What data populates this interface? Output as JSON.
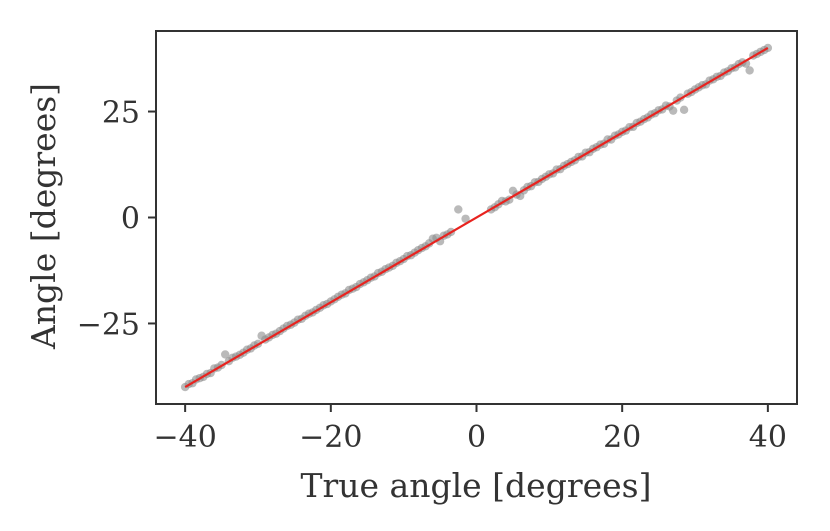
{
  "chart_data": {
    "type": "scatter",
    "title": "",
    "xlabel": "True angle [degrees]",
    "ylabel": "Angle [degrees]",
    "xlim": [
      -44,
      44
    ],
    "ylim": [
      -44,
      44
    ],
    "x_ticks": [
      -40,
      -20,
      0,
      20,
      40
    ],
    "x_tick_labels": [
      "−40",
      "−20",
      "0",
      "20",
      "40"
    ],
    "y_ticks": [
      -25,
      0,
      25
    ],
    "y_tick_labels": [
      "−25",
      "0",
      "25"
    ],
    "grid": false,
    "colors": {
      "points": "#8c8c8c",
      "fit_line": "#e8231f",
      "axes": "#333333"
    },
    "series": [
      {
        "kind": "scatter",
        "points": [
          [
            -40,
            -40
          ],
          [
            -39.5,
            -39.3
          ],
          [
            -39,
            -39.1
          ],
          [
            -38.5,
            -38.2
          ],
          [
            -38,
            -37.9
          ],
          [
            -37.5,
            -37.6
          ],
          [
            -37,
            -36.9
          ],
          [
            -36.5,
            -36.7
          ],
          [
            -36,
            -35.6
          ],
          [
            -35.5,
            -35.4
          ],
          [
            -35,
            -34.8
          ],
          [
            -34.5,
            -32.3
          ],
          [
            -34,
            -33.9
          ],
          [
            -33.5,
            -33.1
          ],
          [
            -33,
            -32.8
          ],
          [
            -32.5,
            -32.4
          ],
          [
            -32,
            -31.9
          ],
          [
            -31.5,
            -31.2
          ],
          [
            -31,
            -30.9
          ],
          [
            -30.5,
            -30.2
          ],
          [
            -30,
            -29.8
          ],
          [
            -29.5,
            -27.9
          ],
          [
            -29,
            -28.8
          ],
          [
            -28.5,
            -28.3
          ],
          [
            -28,
            -27.7
          ],
          [
            -27.5,
            -27.4
          ],
          [
            -27,
            -26.8
          ],
          [
            -26.5,
            -26.2
          ],
          [
            -26,
            -25.6
          ],
          [
            -25.5,
            -25.3
          ],
          [
            -25,
            -24.8
          ],
          [
            -24.5,
            -24.1
          ],
          [
            -24,
            -23.9
          ],
          [
            -23.5,
            -23.2
          ],
          [
            -23,
            -22.7
          ],
          [
            -22.5,
            -22.4
          ],
          [
            -22,
            -21.8
          ],
          [
            -21.5,
            -21.3
          ],
          [
            -21,
            -20.7
          ],
          [
            -20.5,
            -20.4
          ],
          [
            -20,
            -19.8
          ],
          [
            -19.5,
            -19.3
          ],
          [
            -19,
            -18.7
          ],
          [
            -18.5,
            -18.2
          ],
          [
            -18,
            -17.9
          ],
          [
            -17.5,
            -17.1
          ],
          [
            -17,
            -16.8
          ],
          [
            -16.5,
            -16.4
          ],
          [
            -16,
            -15.7
          ],
          [
            -15.5,
            -15.3
          ],
          [
            -15,
            -14.8
          ],
          [
            -14.5,
            -14.2
          ],
          [
            -14,
            -13.9
          ],
          [
            -13.5,
            -13.1
          ],
          [
            -13,
            -12.8
          ],
          [
            -12.5,
            -12.2
          ],
          [
            -12,
            -11.8
          ],
          [
            -11.5,
            -11.4
          ],
          [
            -11,
            -10.7
          ],
          [
            -10.5,
            -10.3
          ],
          [
            -10,
            -9.8
          ],
          [
            -9.5,
            -9.1
          ],
          [
            -9,
            -8.9
          ],
          [
            -8.5,
            -8.3
          ],
          [
            -8,
            -7.7
          ],
          [
            -7.5,
            -7.2
          ],
          [
            -7,
            -6.8
          ],
          [
            -6.5,
            -6.1
          ],
          [
            -6,
            -5.0
          ],
          [
            -5.5,
            -4.8
          ],
          [
            -5,
            -5.6
          ],
          [
            -4.5,
            -4.3
          ],
          [
            -4,
            -4.0
          ],
          [
            -3.5,
            -3.4
          ],
          [
            -2.5,
            1.9
          ],
          [
            -1.5,
            -0.3
          ],
          [
            2,
            1.9
          ],
          [
            2.5,
            2.4
          ],
          [
            3,
            3.1
          ],
          [
            3.5,
            3.9
          ],
          [
            4,
            3.8
          ],
          [
            4.5,
            4.2
          ],
          [
            5,
            6.3
          ],
          [
            5.5,
            5.4
          ],
          [
            6,
            5.1
          ],
          [
            6.5,
            6.4
          ],
          [
            7,
            7.2
          ],
          [
            7.5,
            7.4
          ],
          [
            8,
            8.3
          ],
          [
            8.5,
            8.4
          ],
          [
            9,
            9.1
          ],
          [
            9.5,
            9.6
          ],
          [
            10,
            10.2
          ],
          [
            10.5,
            10.4
          ],
          [
            11,
            11.3
          ],
          [
            11.5,
            11.4
          ],
          [
            12,
            12.2
          ],
          [
            12.5,
            12.6
          ],
          [
            13,
            13.1
          ],
          [
            13.5,
            13.5
          ],
          [
            14,
            14.3
          ],
          [
            14.5,
            14.4
          ],
          [
            15,
            15.3
          ],
          [
            15.5,
            15.4
          ],
          [
            16,
            16.2
          ],
          [
            16.5,
            16.6
          ],
          [
            17,
            17.2
          ],
          [
            17.5,
            17.4
          ],
          [
            18,
            18.4
          ],
          [
            18.5,
            18.4
          ],
          [
            19,
            19.3
          ],
          [
            19.5,
            19.6
          ],
          [
            20,
            20.2
          ],
          [
            20.5,
            20.5
          ],
          [
            21,
            21.3
          ],
          [
            21.5,
            21.4
          ],
          [
            22,
            22.3
          ],
          [
            22.5,
            22.6
          ],
          [
            23,
            23.2
          ],
          [
            23.5,
            23.6
          ],
          [
            24,
            24.3
          ],
          [
            24.5,
            24.6
          ],
          [
            25,
            25.3
          ],
          [
            25.5,
            25.5
          ],
          [
            26,
            26.4
          ],
          [
            26.5,
            26.2
          ],
          [
            27,
            25.2
          ],
          [
            27.5,
            27.6
          ],
          [
            28,
            28.3
          ],
          [
            28.5,
            25.4
          ],
          [
            29,
            29.2
          ],
          [
            29.5,
            29.6
          ],
          [
            30,
            30.2
          ],
          [
            30.5,
            30.7
          ],
          [
            31,
            31.2
          ],
          [
            31.5,
            31.4
          ],
          [
            32,
            32.3
          ],
          [
            32.5,
            32.6
          ],
          [
            33,
            33.2
          ],
          [
            33.5,
            33.4
          ],
          [
            34,
            34.2
          ],
          [
            34.5,
            34.5
          ],
          [
            35,
            35.2
          ],
          [
            35.5,
            35.4
          ],
          [
            36,
            36.2
          ],
          [
            36.5,
            36.6
          ],
          [
            37,
            36.3
          ],
          [
            37.5,
            34.7
          ],
          [
            38,
            38.2
          ],
          [
            38.5,
            38.6
          ],
          [
            39,
            39.1
          ],
          [
            39.5,
            39.5
          ],
          [
            40,
            40.0
          ]
        ]
      },
      {
        "kind": "line",
        "points": [
          [
            -40,
            -40
          ],
          [
            40,
            40
          ]
        ]
      }
    ]
  }
}
